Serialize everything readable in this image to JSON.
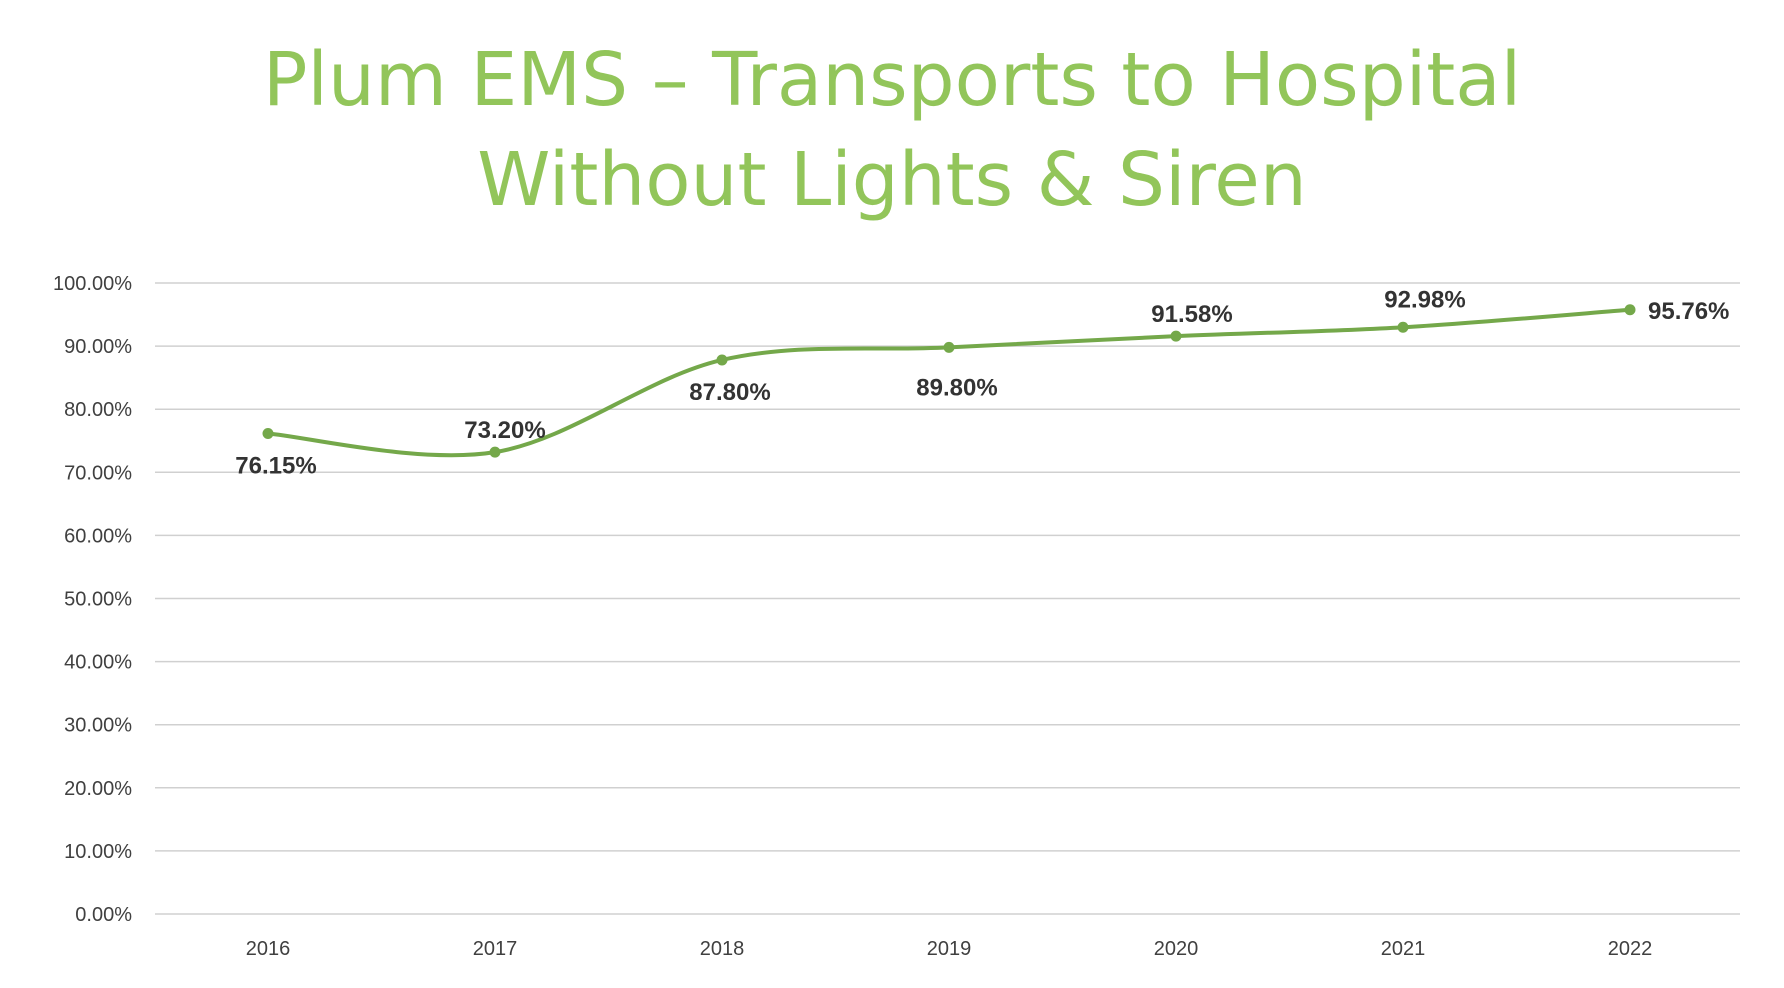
{
  "colors": {
    "title": "#92c55a",
    "line": "#74a84a",
    "grid": "#d0d0d0",
    "label": "#333333"
  },
  "chart_data": {
    "type": "line",
    "title": [
      "Plum EMS – Transports to Hospital",
      "Without Lights & Siren"
    ],
    "categories": [
      "2016",
      "2017",
      "2018",
      "2019",
      "2020",
      "2021",
      "2022"
    ],
    "values": [
      76.15,
      73.2,
      87.8,
      89.8,
      91.58,
      92.98,
      95.76
    ],
    "data_labels": [
      "76.15%",
      "73.20%",
      "87.80%",
      "89.80%",
      "91.58%",
      "92.98%",
      "95.76%"
    ],
    "yticks": [
      "0.00%",
      "10.00%",
      "20.00%",
      "30.00%",
      "40.00%",
      "50.00%",
      "60.00%",
      "70.00%",
      "80.00%",
      "90.00%",
      "100.00%"
    ],
    "ylim": [
      0,
      100
    ],
    "smooth": true,
    "grid": true,
    "legend": "none"
  }
}
